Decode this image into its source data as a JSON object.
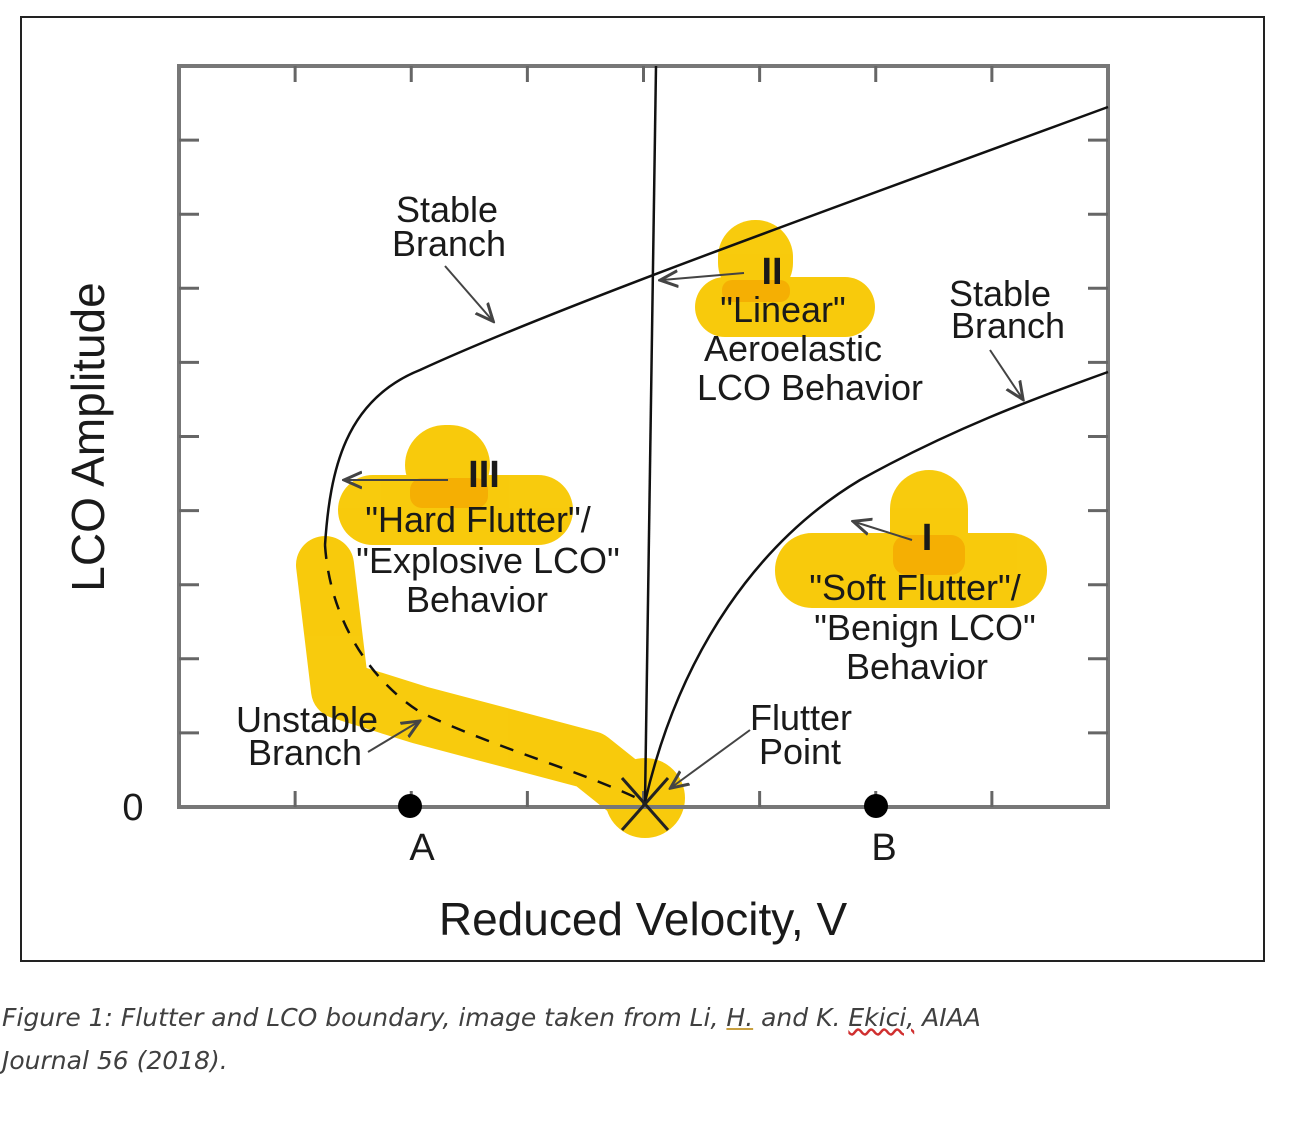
{
  "figure": {
    "chart_data": {
      "type": "diagram",
      "title": "",
      "xlabel": "Reduced Velocity, V",
      "ylabel": "LCO Amplitude",
      "y_origin_label": "0",
      "x_markers": [
        {
          "label": "A",
          "position": "left of flutter point"
        },
        {
          "label": "B",
          "position": "right of flutter point"
        }
      ],
      "flutter_point_label": "Flutter Point",
      "branches": [
        {
          "name": "Stable Branch",
          "kind": "solid",
          "description": "upper stable branch (hard flutter)"
        },
        {
          "name": "Unstable Branch",
          "kind": "dashed",
          "description": "unstable branch from flutter point"
        },
        {
          "name": "Stable Branch",
          "kind": "solid",
          "description": "lower stable branch (soft flutter)"
        },
        {
          "name": "Flutter boundary",
          "kind": "vertical",
          "description": "vertical line at flutter velocity"
        }
      ],
      "regions": [
        {
          "id": "I",
          "lines": [
            "\"Soft Flutter\"/",
            "\"Benign LCO\"",
            "Behavior"
          ]
        },
        {
          "id": "II",
          "lines": [
            "\"Linear\"",
            "Aeroelastic",
            "LCO Behavior"
          ]
        },
        {
          "id": "III",
          "lines": [
            "\"Hard Flutter\"/",
            "\"Explosive LCO\"",
            "Behavior"
          ]
        }
      ],
      "highlight_color": "#f8c800",
      "grid": false
    },
    "labels": {
      "stable_branch_upper": [
        "Stable",
        "Branch"
      ],
      "stable_branch_lower": [
        "Stable",
        "Branch"
      ],
      "unstable_branch": [
        "Unstable",
        "Branch"
      ],
      "flutter_point": [
        "Flutter",
        "Point"
      ]
    }
  },
  "caption": {
    "part1": "Figure 1: Flutter and LCO boundary, image taken from Li, ",
    "underlined_gold": "H.",
    "part2": " and K. ",
    "underlined_red": "Ekici,",
    "part3": " AIAA",
    "line2": "Journal 56 (2018)."
  }
}
